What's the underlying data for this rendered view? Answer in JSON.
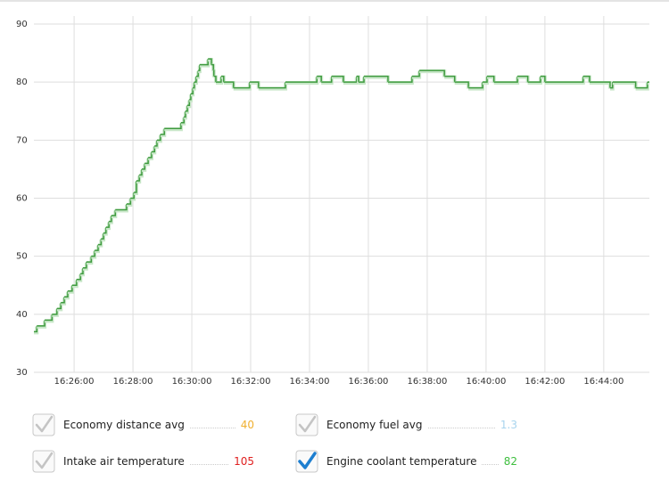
{
  "chart_data": {
    "type": "step",
    "x": [
      "16:24:38",
      "16:24:44",
      "16:25:00",
      "16:25:15",
      "16:25:25",
      "16:25:33",
      "16:25:40",
      "16:25:47",
      "16:25:56",
      "16:26:05",
      "16:26:13",
      "16:26:18",
      "16:26:25",
      "16:26:35",
      "16:26:42",
      "16:26:49",
      "16:26:55",
      "16:27:00",
      "16:27:05",
      "16:27:11",
      "16:27:16",
      "16:27:24",
      "16:27:47",
      "16:27:55",
      "16:28:02",
      "16:28:07",
      "16:28:13",
      "16:28:18",
      "16:28:24",
      "16:28:31",
      "16:28:38",
      "16:28:44",
      "16:28:49",
      "16:28:56",
      "16:29:04",
      "16:29:38",
      "16:29:44",
      "16:29:47",
      "16:29:51",
      "16:29:55",
      "16:29:58",
      "16:30:02",
      "16:30:05",
      "16:30:09",
      "16:30:13",
      "16:30:16",
      "16:30:33",
      "16:30:40",
      "16:30:44",
      "16:30:45",
      "16:30:49",
      "16:31:00",
      "16:31:05",
      "16:31:25",
      "16:31:58",
      "16:32:16",
      "16:33:11",
      "16:34:15",
      "16:34:24",
      "16:34:45",
      "16:35:09",
      "16:35:36",
      "16:35:40",
      "16:35:51",
      "16:36:40",
      "16:37:29",
      "16:37:44",
      "16:38:35",
      "16:38:56",
      "16:39:24",
      "16:39:53",
      "16:40:02",
      "16:40:16",
      "16:41:04",
      "16:41:25",
      "16:41:51",
      "16:42:00",
      "16:43:18",
      "16:43:31",
      "16:44:13",
      "16:44:18",
      "16:45:05",
      "16:45:29"
    ],
    "series": [
      {
        "name": "Engine coolant temperature",
        "color": "#3f9b3f",
        "values": [
          37,
          38,
          39,
          40,
          41,
          42,
          43,
          44,
          45,
          46,
          47,
          48,
          49,
          50,
          51,
          52,
          53,
          54,
          55,
          56,
          57,
          58,
          59,
          60,
          61,
          63,
          64,
          65,
          66,
          67,
          68,
          69,
          70,
          71,
          72,
          73,
          74,
          75,
          76,
          77,
          78,
          79,
          80,
          81,
          82,
          83,
          84,
          83,
          82,
          81,
          80,
          81,
          80,
          79,
          80,
          79,
          80,
          81,
          80,
          81,
          80,
          81,
          80,
          81,
          80,
          81,
          82,
          81,
          80,
          79,
          80,
          81,
          80,
          81,
          80,
          81,
          80,
          81,
          80,
          79,
          80,
          79,
          80
        ]
      }
    ],
    "xlim": [
      "16:24:38",
      "16:45:33"
    ],
    "xticks": [
      "16:26:00",
      "16:28:00",
      "16:30:00",
      "16:32:00",
      "16:34:00",
      "16:36:00",
      "16:38:00",
      "16:40:00",
      "16:42:00",
      "16:44:00"
    ],
    "ylim": [
      30,
      90
    ],
    "yticks": [
      30,
      40,
      50,
      60,
      70,
      80,
      90
    ],
    "grid": true
  },
  "sensors": [
    {
      "name": "Economy distance avg",
      "value": "40",
      "color": "#f0b030",
      "checked": false
    },
    {
      "name": "Economy fuel avg",
      "value": "1.3",
      "color": "#a8d4ee",
      "checked": false
    },
    {
      "name": "Intake air temperature",
      "value": "105",
      "color": "#e02020",
      "checked": false
    },
    {
      "name": "Engine coolant temperature",
      "value": "82",
      "color": "#3fbf3f",
      "checked": true
    }
  ]
}
